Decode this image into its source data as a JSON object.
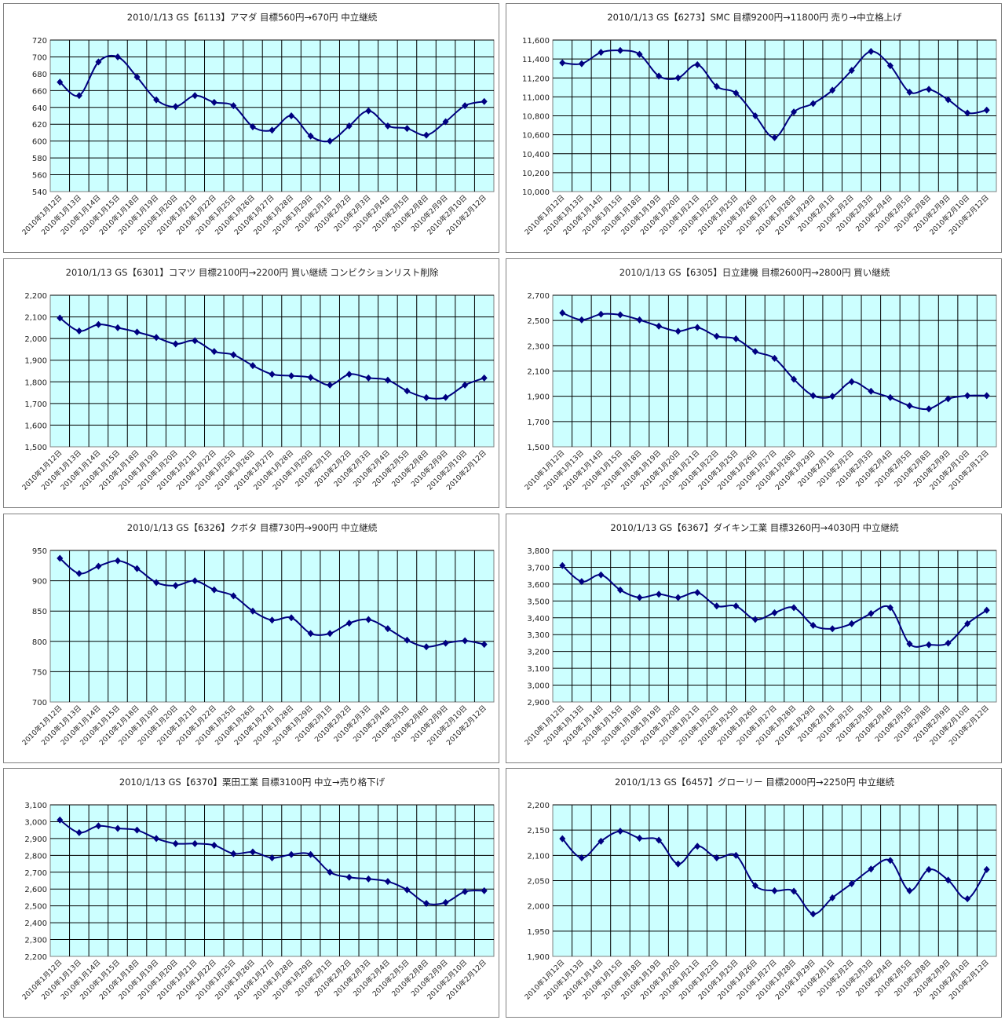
{
  "dates": [
    "2010年1月12日",
    "2010年1月13日",
    "2010年1月14日",
    "2010年1月15日",
    "2010年1月18日",
    "2010年1月19日",
    "2010年1月20日",
    "2010年1月21日",
    "2010年1月22日",
    "2010年1月25日",
    "2010年1月26日",
    "2010年1月27日",
    "2010年1月28日",
    "2010年1月29日",
    "2010年2月1日",
    "2010年2月2日",
    "2010年2月3日",
    "2010年2月4日",
    "2010年2月5日",
    "2010年2月8日",
    "2010年2月9日",
    "2010年2月10日",
    "2010年2月12日"
  ],
  "colors": {
    "plot_bg": "#ccffff",
    "line": "#000080",
    "grid": "#000000"
  },
  "chart_data": [
    {
      "type": "line",
      "title": "2010/1/13 GS【6113】アマダ 目標560円→670円 中立継続",
      "ylim": [
        540,
        720
      ],
      "ystep": 20,
      "grid": true,
      "values": [
        670,
        654,
        694,
        700,
        676,
        649,
        641,
        654,
        646,
        642,
        617,
        613,
        630,
        606,
        600,
        618,
        636,
        618,
        615,
        607,
        623,
        642,
        647
      ]
    },
    {
      "type": "line",
      "title": "2010/1/13 GS【6273】SMC 目標9200円→11800円 売り→中立格上げ",
      "ylim": [
        10000,
        11600
      ],
      "ystep": 200,
      "grid": true,
      "values": [
        11360,
        11350,
        11470,
        11490,
        11450,
        11220,
        11200,
        11340,
        11110,
        11040,
        10800,
        10570,
        10840,
        10930,
        11070,
        11280,
        11480,
        11330,
        11050,
        11080,
        10970,
        10830,
        10860
      ]
    },
    {
      "type": "line",
      "title": "2010/1/13 GS【6301】コマツ 目標2100円→2200円 買い継続 コンビクションリスト削除",
      "ylim": [
        1500,
        2200
      ],
      "ystep": 100,
      "grid": true,
      "values": [
        2095,
        2035,
        2065,
        2050,
        2030,
        2005,
        1975,
        1990,
        1940,
        1925,
        1875,
        1835,
        1828,
        1820,
        1785,
        1835,
        1818,
        1808,
        1758,
        1727,
        1728,
        1785,
        1818
      ]
    },
    {
      "type": "line",
      "title": "2010/1/13 GS【6305】日立建機 目標2600円→2800円 買い継続",
      "ylim": [
        1500,
        2700
      ],
      "ystep": 200,
      "grid": true,
      "values": [
        2560,
        2505,
        2550,
        2545,
        2505,
        2455,
        2415,
        2445,
        2375,
        2355,
        2255,
        2200,
        2035,
        1905,
        1900,
        2015,
        1940,
        1890,
        1825,
        1800,
        1880,
        1905,
        1905
      ]
    },
    {
      "type": "line",
      "title": "2010/1/13 GS【6326】クボタ 目標730円→900円 中立継続",
      "ylim": [
        700,
        950
      ],
      "ystep": 50,
      "grid": true,
      "values": [
        937,
        912,
        924,
        933,
        920,
        897,
        892,
        900,
        885,
        875,
        850,
        835,
        839,
        813,
        813,
        830,
        836,
        821,
        802,
        791,
        797,
        801,
        795
      ]
    },
    {
      "type": "line",
      "title": "2010/1/13 GS【6367】ダイキン工業 目標3260円→4030円 中立継続",
      "ylim": [
        2900,
        3800
      ],
      "ystep": 100,
      "grid": true,
      "values": [
        3710,
        3615,
        3655,
        3565,
        3520,
        3540,
        3520,
        3550,
        3470,
        3470,
        3390,
        3430,
        3460,
        3355,
        3335,
        3365,
        3425,
        3460,
        3245,
        3240,
        3250,
        3365,
        3445
      ]
    },
    {
      "type": "line",
      "title": "2010/1/13 GS【6370】栗田工業 目標3100円 中立→売り格下げ",
      "ylim": [
        2200,
        3100
      ],
      "ystep": 100,
      "grid": true,
      "values": [
        3010,
        2935,
        2975,
        2960,
        2950,
        2900,
        2870,
        2870,
        2860,
        2810,
        2820,
        2785,
        2805,
        2805,
        2700,
        2670,
        2660,
        2645,
        2595,
        2515,
        2520,
        2585,
        2590
      ]
    },
    {
      "type": "line",
      "title": "2010/1/13 GS【6457】グローリー 目標2000円→2250円 中立継続",
      "ylim": [
        1900,
        2200
      ],
      "ystep": 50,
      "grid": true,
      "values": [
        2133,
        2095,
        2128,
        2148,
        2134,
        2130,
        2083,
        2118,
        2095,
        2100,
        2040,
        2030,
        2029,
        1984,
        2016,
        2044,
        2073,
        2090,
        2030,
        2072,
        2051,
        2014,
        2072
      ]
    }
  ]
}
